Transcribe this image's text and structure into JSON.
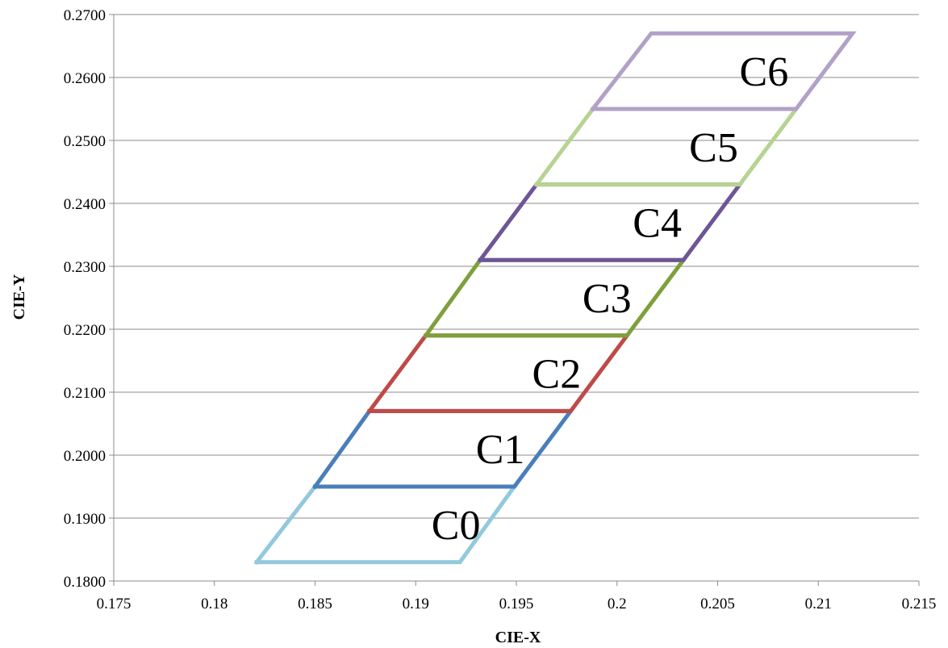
{
  "chart_data": {
    "type": "line",
    "title": "",
    "xlabel": "CIE-X",
    "ylabel": "CIE-Y",
    "xlim": [
      0.175,
      0.215
    ],
    "ylim": [
      0.18,
      0.27
    ],
    "x_ticks": [
      "0.175",
      "0.18",
      "0.185",
      "0.19",
      "0.195",
      "0.2",
      "0.205",
      "0.21",
      "0.215"
    ],
    "y_ticks": [
      "0.1800",
      "0.1900",
      "0.2000",
      "0.2100",
      "0.2200",
      "0.2300",
      "0.2400",
      "0.2500",
      "0.2600",
      "0.2700"
    ],
    "grid": "horizontal",
    "legend": "none",
    "series": [
      {
        "name": "C0",
        "color": "#92c9dc",
        "points": [
          [
            0.1821,
            0.183
          ],
          [
            0.1922,
            0.183
          ],
          [
            0.1949,
            0.195
          ],
          [
            0.185,
            0.195
          ],
          [
            0.1821,
            0.183
          ]
        ]
      },
      {
        "name": "C1",
        "color": "#4a7ebb",
        "points": [
          [
            0.185,
            0.195
          ],
          [
            0.1949,
            0.195
          ],
          [
            0.1977,
            0.207
          ],
          [
            0.1877,
            0.207
          ],
          [
            0.185,
            0.195
          ]
        ]
      },
      {
        "name": "C2",
        "color": "#be4b48",
        "points": [
          [
            0.1877,
            0.207
          ],
          [
            0.1977,
            0.207
          ],
          [
            0.2005,
            0.219
          ],
          [
            0.1905,
            0.219
          ],
          [
            0.1877,
            0.207
          ]
        ]
      },
      {
        "name": "C3",
        "color": "#7ea03c",
        "points": [
          [
            0.1905,
            0.219
          ],
          [
            0.2005,
            0.219
          ],
          [
            0.2033,
            0.231
          ],
          [
            0.1932,
            0.231
          ],
          [
            0.1905,
            0.219
          ]
        ]
      },
      {
        "name": "C4",
        "color": "#6e5596",
        "points": [
          [
            0.1932,
            0.231
          ],
          [
            0.2033,
            0.231
          ],
          [
            0.2061,
            0.243
          ],
          [
            0.196,
            0.243
          ],
          [
            0.1932,
            0.231
          ]
        ]
      },
      {
        "name": "C5",
        "color": "#b6d392",
        "points": [
          [
            0.196,
            0.243
          ],
          [
            0.2061,
            0.243
          ],
          [
            0.2089,
            0.255
          ],
          [
            0.1988,
            0.255
          ],
          [
            0.196,
            0.243
          ]
        ]
      },
      {
        "name": "C6",
        "color": "#b2a1c7",
        "points": [
          [
            0.1988,
            0.255
          ],
          [
            0.2089,
            0.255
          ],
          [
            0.2117,
            0.267
          ],
          [
            0.2017,
            0.267
          ],
          [
            0.1988,
            0.255
          ]
        ]
      }
    ],
    "annotations": [
      {
        "text": "C0",
        "x": 0.192,
        "y": 0.189
      },
      {
        "text": "C1",
        "x": 0.1942,
        "y": 0.201
      },
      {
        "text": "C2",
        "x": 0.197,
        "y": 0.213
      },
      {
        "text": "C3",
        "x": 0.1995,
        "y": 0.225
      },
      {
        "text": "C4",
        "x": 0.202,
        "y": 0.237
      },
      {
        "text": "C5",
        "x": 0.2048,
        "y": 0.249
      },
      {
        "text": "C6",
        "x": 0.2073,
        "y": 0.261
      }
    ]
  }
}
